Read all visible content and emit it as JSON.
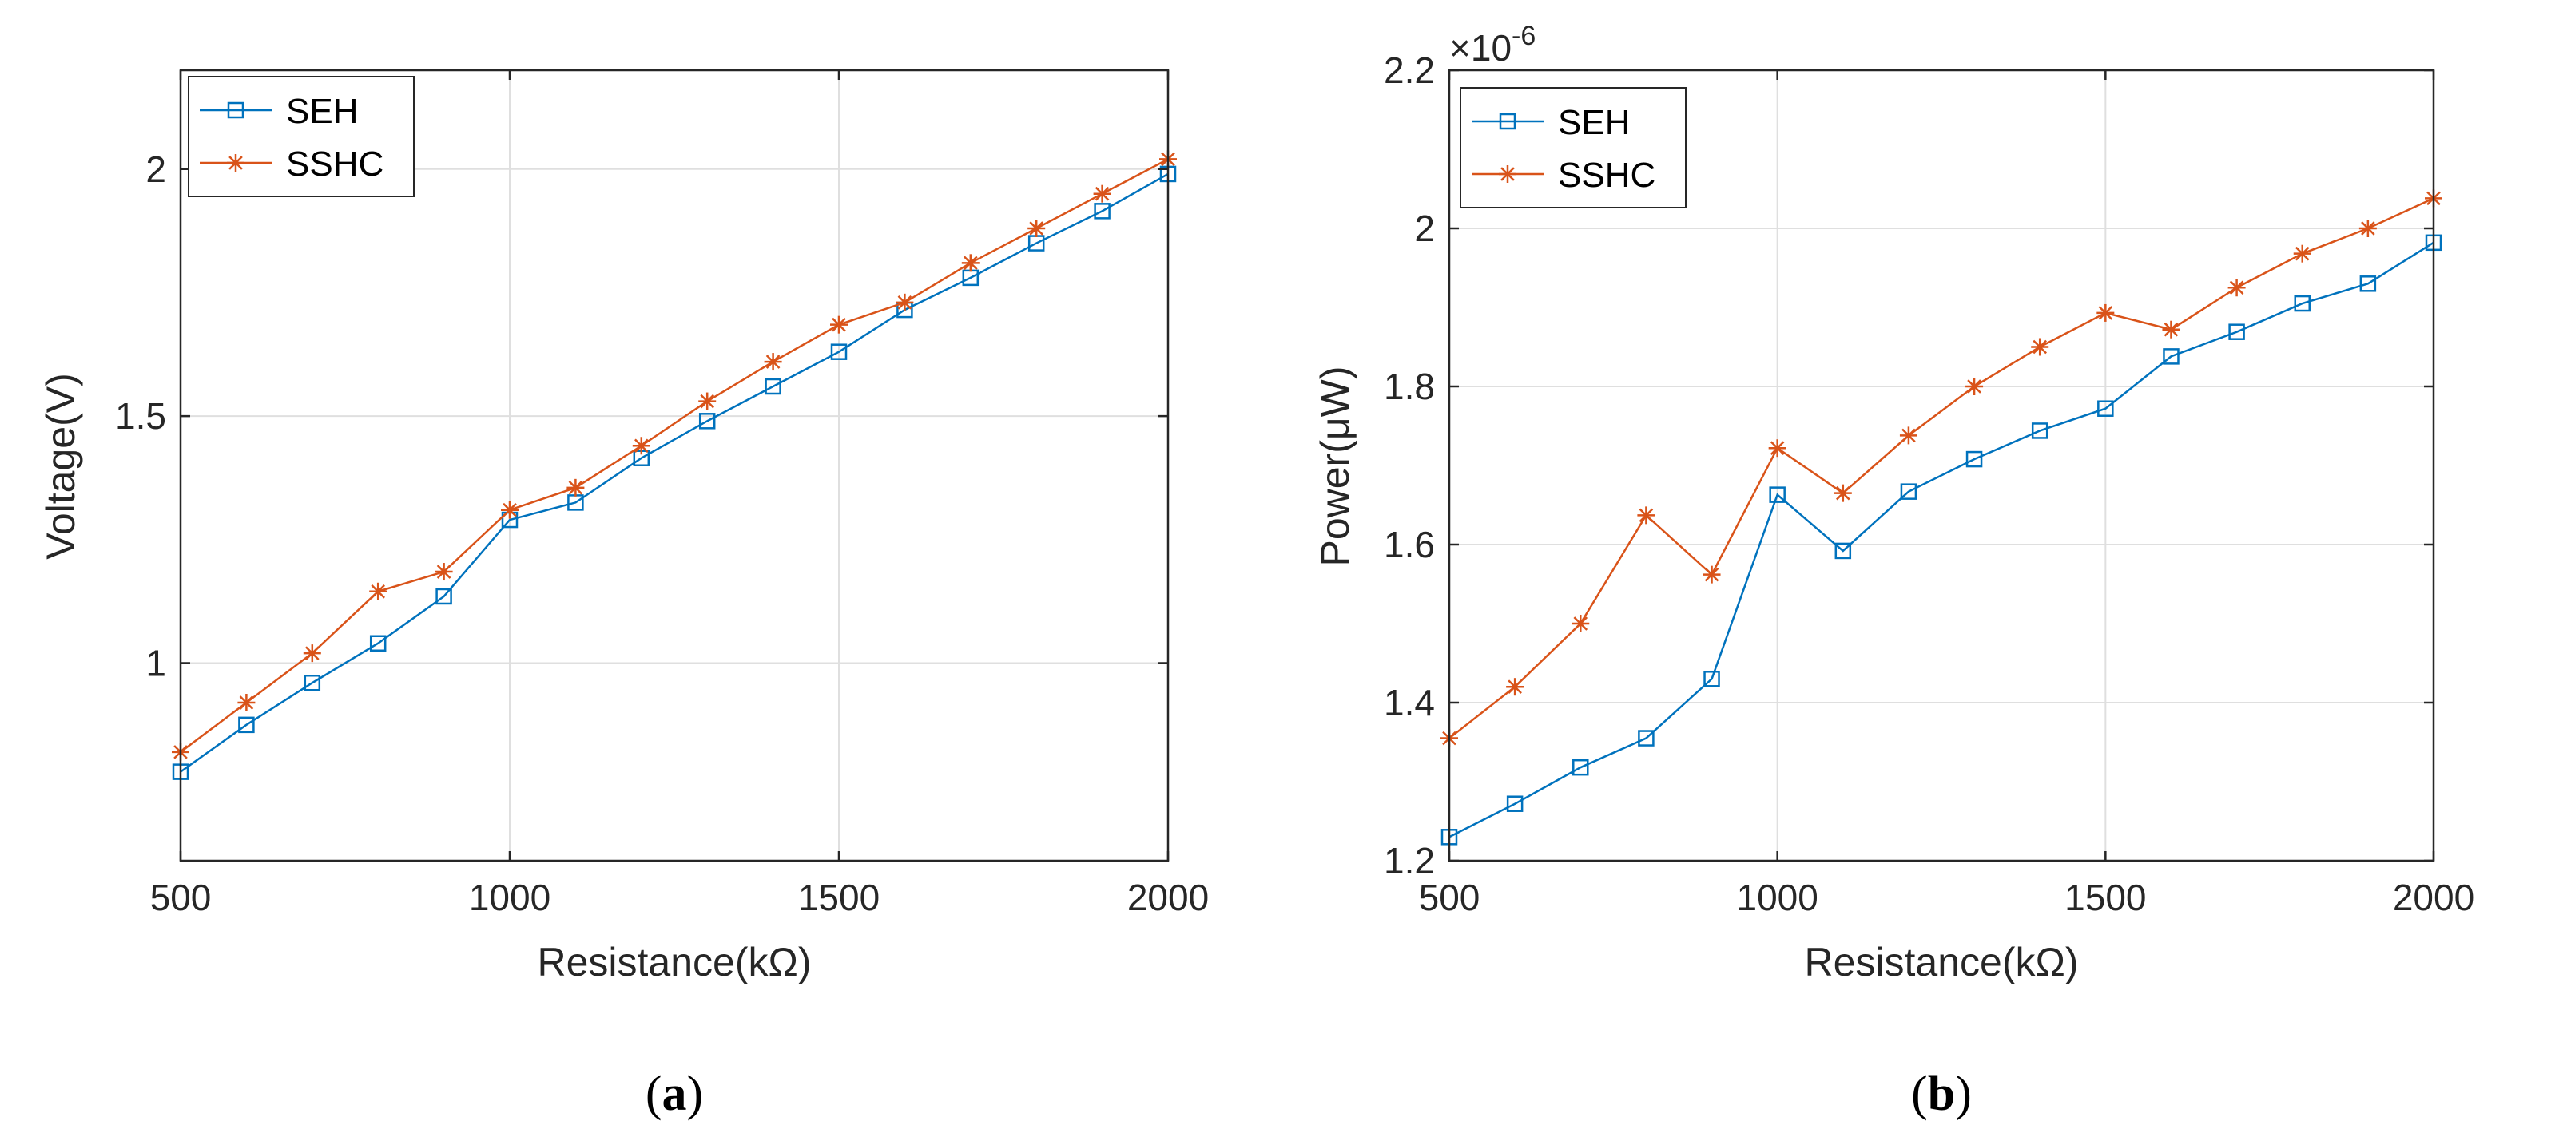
{
  "colors": {
    "seh": "#0072bd",
    "sshc": "#d95319",
    "axis": "#262626",
    "grid": "#dfdfdf"
  },
  "chart_data": [
    {
      "type": "line",
      "panel": "a",
      "caption": {
        "open": "(",
        "letter": "a",
        "close": ")"
      },
      "xlabel": "Resistance(kΩ)",
      "ylabel": "Voltage(V)",
      "exponent_label": "",
      "xlim": [
        500,
        2000
      ],
      "ylim": [
        0.6,
        2.2
      ],
      "xticks": [
        500,
        1000,
        1500,
        2000
      ],
      "yticks": [
        1,
        1.5,
        2
      ],
      "x": [
        500,
        600,
        700,
        800,
        900,
        1000,
        1100,
        1200,
        1300,
        1400,
        1500,
        1600,
        1700,
        1800,
        1900,
        2000
      ],
      "series": [
        {
          "name": "SEH",
          "marker": "square",
          "color_key": "seh",
          "values": [
            0.78,
            0.875,
            0.96,
            1.04,
            1.135,
            1.29,
            1.325,
            1.415,
            1.49,
            1.56,
            1.63,
            1.715,
            1.78,
            1.85,
            1.915,
            1.99
          ]
        },
        {
          "name": "SSHC",
          "marker": "star",
          "color_key": "sshc",
          "values": [
            0.82,
            0.92,
            1.02,
            1.145,
            1.185,
            1.31,
            1.355,
            1.44,
            1.53,
            1.61,
            1.685,
            1.73,
            1.81,
            1.88,
            1.95,
            2.02
          ]
        }
      ],
      "legend": "top-left",
      "grid": true
    },
    {
      "type": "line",
      "panel": "b",
      "caption": {
        "open": "(",
        "letter": "b",
        "close": ")"
      },
      "xlabel": "Resistance(kΩ)",
      "ylabel": "Power(μW)",
      "exponent_label": "×10",
      "exponent_power": "-6",
      "xlim": [
        500,
        2000
      ],
      "ylim": [
        1.2,
        2.2
      ],
      "xticks": [
        500,
        1000,
        1500,
        2000
      ],
      "yticks": [
        1.2,
        1.4,
        1.6,
        1.8,
        2,
        2.2
      ],
      "x": [
        500,
        600,
        700,
        800,
        900,
        1000,
        1100,
        1200,
        1300,
        1400,
        1500,
        1600,
        1700,
        1800,
        1900,
        2000
      ],
      "series": [
        {
          "name": "SEH",
          "marker": "square",
          "color_key": "seh",
          "values": [
            1.23,
            1.272,
            1.318,
            1.355,
            1.43,
            1.663,
            1.592,
            1.667,
            1.708,
            1.744,
            1.772,
            1.838,
            1.869,
            1.905,
            1.93,
            1.982
          ]
        },
        {
          "name": "SSHC",
          "marker": "star",
          "color_key": "sshc",
          "values": [
            1.355,
            1.42,
            1.5,
            1.637,
            1.562,
            1.722,
            1.665,
            1.738,
            1.8,
            1.85,
            1.893,
            1.872,
            1.925,
            1.968,
            2.0,
            2.038
          ]
        }
      ],
      "legend": "top-left",
      "grid": true
    }
  ]
}
